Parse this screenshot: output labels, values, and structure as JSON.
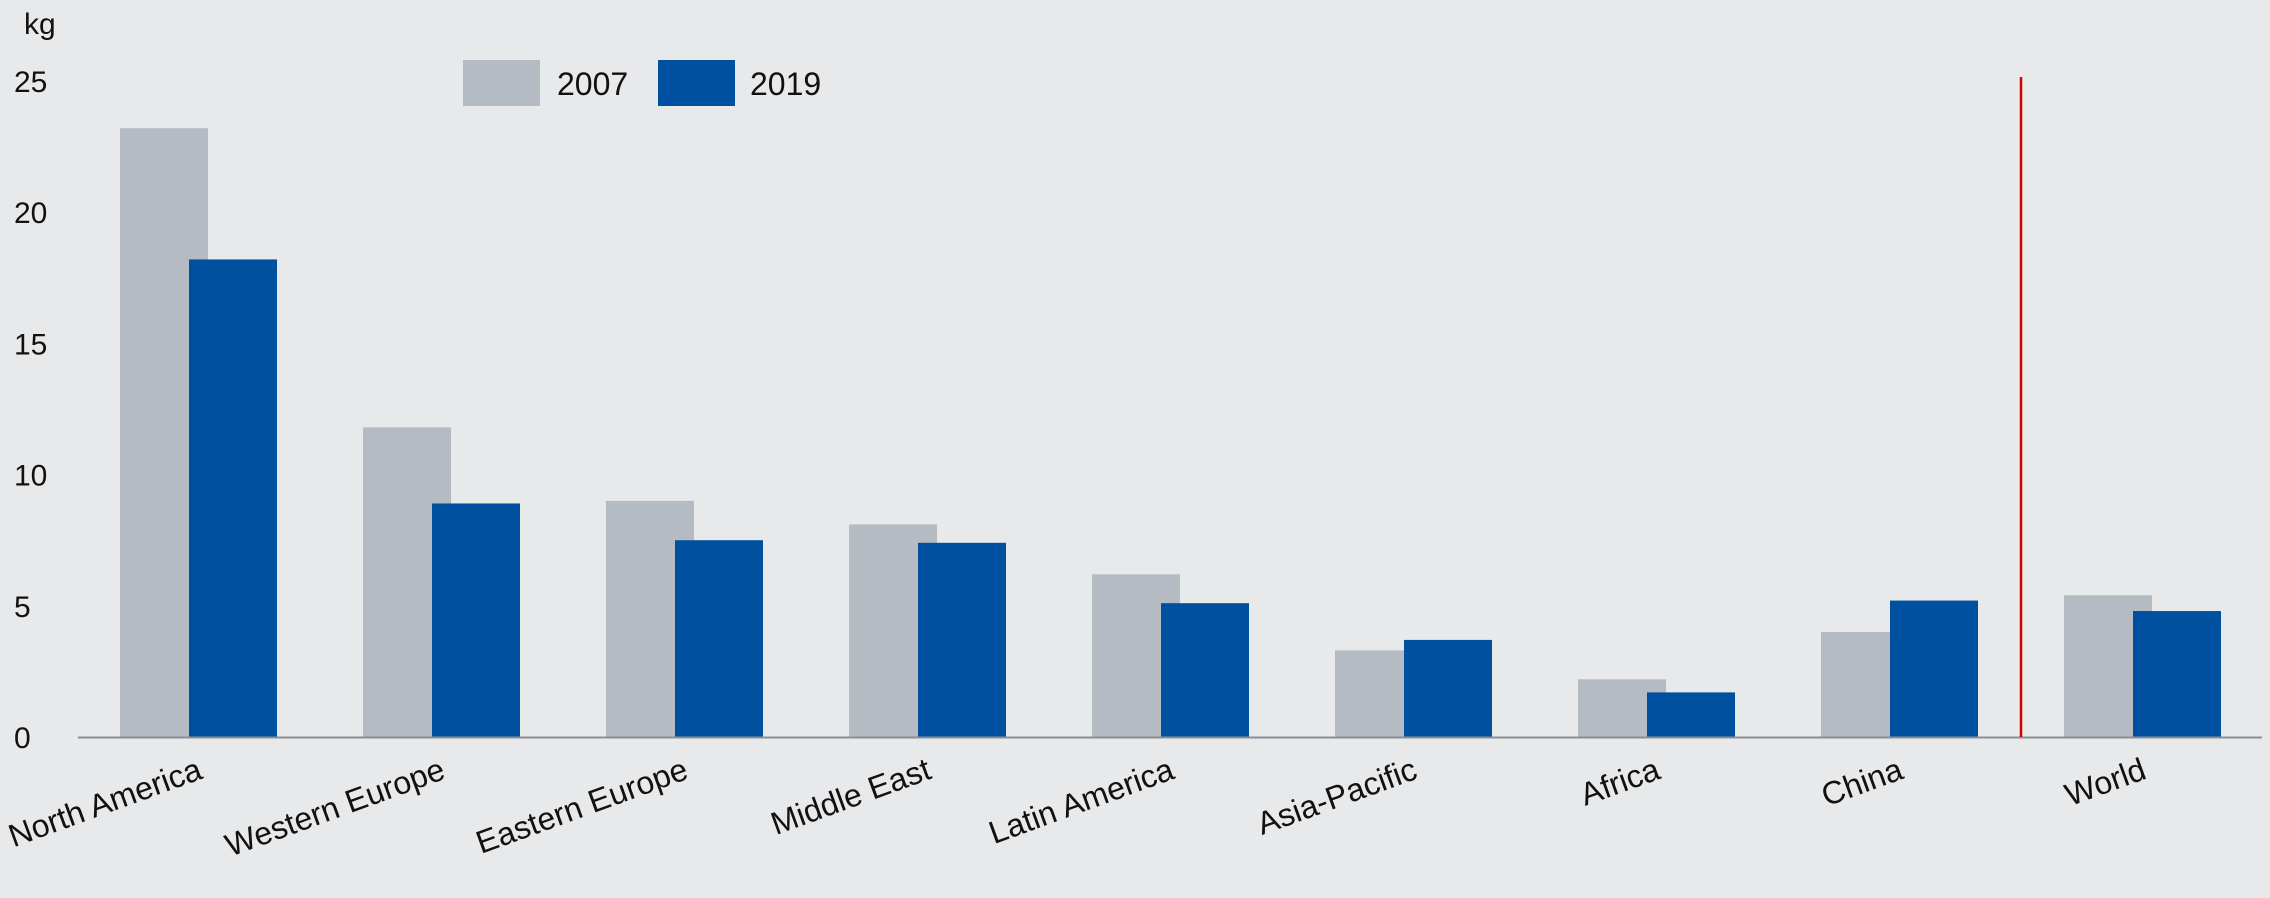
{
  "chart_data": {
    "type": "bar",
    "unit_label": "kg",
    "categories": [
      "North America",
      "Western Europe",
      "Eastern Europe",
      "Middle East",
      "Latin America",
      "Asia-Pacific",
      "Africa",
      "China",
      "World"
    ],
    "series": [
      {
        "name": "2007",
        "color": "#b4bbc2",
        "values": [
          23.2,
          11.8,
          9.0,
          8.1,
          6.2,
          3.3,
          2.2,
          4.0,
          5.4
        ]
      },
      {
        "name": "2019",
        "color": "#0050a0",
        "values": [
          18.2,
          8.9,
          7.5,
          7.4,
          5.1,
          3.7,
          1.7,
          5.2,
          4.8
        ]
      }
    ],
    "ylim": [
      0,
      25
    ],
    "yticks": [
      0,
      5,
      10,
      15,
      20,
      25
    ],
    "grid": false,
    "legend_position": "top-left",
    "separator_color": "#d40000",
    "separator_before_category": "World",
    "axis_color": "#8a8f94"
  }
}
